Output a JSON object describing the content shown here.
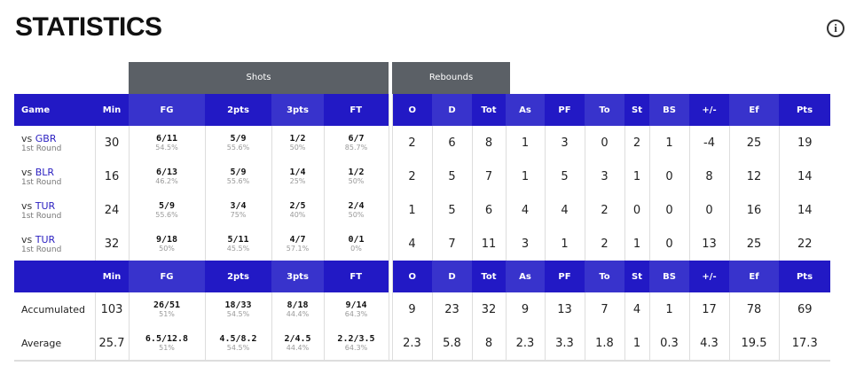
{
  "title": "STATISTICS",
  "info_icon": "info-circle-icon",
  "groups": {
    "shots": "Shots",
    "rebounds": "Rebounds"
  },
  "headers": [
    "Game",
    "Min",
    "FG",
    "2pts",
    "3pts",
    "FT",
    "O",
    "D",
    "Tot",
    "As",
    "PF",
    "To",
    "St",
    "BS",
    "+/-",
    "Ef",
    "Pts"
  ],
  "colors": {
    "header_dark": "#2219c5",
    "header_light": "#3833cc",
    "group": "#5b6066"
  },
  "games": [
    {
      "vs": "vs",
      "opp": "GBR",
      "round": "1st Round",
      "min": "30",
      "fg": "6/11",
      "fg_pct": "54.5%",
      "p2": "5/9",
      "p2_pct": "55.6%",
      "p3": "1/2",
      "p3_pct": "50%",
      "ft": "6/7",
      "ft_pct": "85.7%",
      "o": "2",
      "d": "6",
      "tot": "8",
      "as": "1",
      "pf": "3",
      "to": "0",
      "st": "2",
      "bs": "1",
      "pm": "-4",
      "ef": "25",
      "pts": "19"
    },
    {
      "vs": "vs",
      "opp": "BLR",
      "round": "1st Round",
      "min": "16",
      "fg": "6/13",
      "fg_pct": "46.2%",
      "p2": "5/9",
      "p2_pct": "55.6%",
      "p3": "1/4",
      "p3_pct": "25%",
      "ft": "1/2",
      "ft_pct": "50%",
      "o": "2",
      "d": "5",
      "tot": "7",
      "as": "1",
      "pf": "5",
      "to": "3",
      "st": "1",
      "bs": "0",
      "pm": "8",
      "ef": "12",
      "pts": "14"
    },
    {
      "vs": "vs",
      "opp": "TUR",
      "round": "1st Round",
      "min": "24",
      "fg": "5/9",
      "fg_pct": "55.6%",
      "p2": "3/4",
      "p2_pct": "75%",
      "p3": "2/5",
      "p3_pct": "40%",
      "ft": "2/4",
      "ft_pct": "50%",
      "o": "1",
      "d": "5",
      "tot": "6",
      "as": "4",
      "pf": "4",
      "to": "2",
      "st": "0",
      "bs": "0",
      "pm": "0",
      "ef": "16",
      "pts": "14"
    },
    {
      "vs": "vs",
      "opp": "TUR",
      "round": "1st Round",
      "min": "32",
      "fg": "9/18",
      "fg_pct": "50%",
      "p2": "5/11",
      "p2_pct": "45.5%",
      "p3": "4/7",
      "p3_pct": "57.1%",
      "ft": "0/1",
      "ft_pct": "0%",
      "o": "4",
      "d": "7",
      "tot": "11",
      "as": "3",
      "pf": "1",
      "to": "2",
      "st": "1",
      "bs": "0",
      "pm": "13",
      "ef": "25",
      "pts": "22"
    }
  ],
  "totals": [
    {
      "label": "Accumulated",
      "min": "103",
      "fg": "26/51",
      "fg_pct": "51%",
      "p2": "18/33",
      "p2_pct": "54.5%",
      "p3": "8/18",
      "p3_pct": "44.4%",
      "ft": "9/14",
      "ft_pct": "64.3%",
      "o": "9",
      "d": "23",
      "tot": "32",
      "as": "9",
      "pf": "13",
      "to": "7",
      "st": "4",
      "bs": "1",
      "pm": "17",
      "ef": "78",
      "pts": "69"
    },
    {
      "label": "Average",
      "min": "25.7",
      "fg": "6.5/12.8",
      "fg_pct": "51%",
      "p2": "4.5/8.2",
      "p2_pct": "54.5%",
      "p3": "2/4.5",
      "p3_pct": "44.4%",
      "ft": "2.2/3.5",
      "ft_pct": "64.3%",
      "o": "2.3",
      "d": "5.8",
      "tot": "8",
      "as": "2.3",
      "pf": "3.3",
      "to": "1.8",
      "st": "1",
      "bs": "0.3",
      "pm": "4.3",
      "ef": "19.5",
      "pts": "17.3"
    }
  ]
}
